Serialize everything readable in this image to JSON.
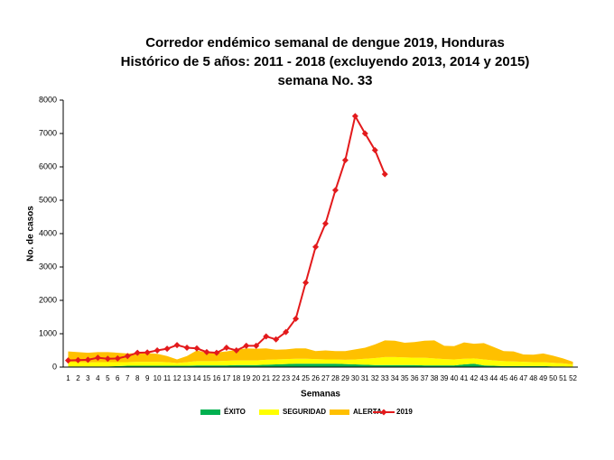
{
  "chart_data": {
    "type": "area",
    "title": [
      "Corredor endémico semanal de dengue 2019, Honduras",
      "Histórico de 5 años: 2011 - 2018 (excluyendo 2013, 2014 y 2015)",
      "semana No. 33"
    ],
    "x_label": "Semanas",
    "y_label": "No. de casos",
    "categories": [
      "1",
      "2",
      "3",
      "4",
      "5",
      "6",
      "7",
      "8",
      "9",
      "10",
      "11",
      "12",
      "13",
      "14",
      "15",
      "16",
      "17",
      "18",
      "19",
      "20",
      "21",
      "22",
      "23",
      "24",
      "25",
      "26",
      "27",
      "28",
      "29",
      "30",
      "31",
      "32",
      "33",
      "34",
      "35",
      "36",
      "37",
      "38",
      "39",
      "40",
      "41",
      "42",
      "43",
      "44",
      "45",
      "46",
      "47",
      "48",
      "49",
      "50",
      "51",
      "52"
    ],
    "ylim": [
      0,
      8000
    ],
    "yticks": [
      0,
      1000,
      2000,
      3000,
      4000,
      5000,
      6000,
      7000,
      8000
    ],
    "series": [
      {
        "name": "ÉXITO",
        "type": "area",
        "color": "#00b050",
        "values": [
          20,
          20,
          20,
          20,
          20,
          30,
          40,
          40,
          40,
          40,
          40,
          40,
          40,
          50,
          50,
          50,
          50,
          60,
          60,
          60,
          70,
          80,
          90,
          100,
          100,
          100,
          100,
          100,
          90,
          80,
          70,
          60,
          60,
          60,
          60,
          60,
          50,
          50,
          50,
          50,
          80,
          100,
          50,
          40,
          30,
          30,
          30,
          30,
          30,
          20,
          20,
          10
        ]
      },
      {
        "name": "SEGURIDAD",
        "type": "area",
        "color": "#ffff00",
        "values": [
          130,
          130,
          120,
          130,
          130,
          120,
          110,
          120,
          120,
          120,
          110,
          80,
          110,
          130,
          130,
          130,
          140,
          140,
          140,
          140,
          150,
          150,
          150,
          150,
          150,
          140,
          130,
          130,
          130,
          150,
          180,
          210,
          240,
          240,
          230,
          220,
          230,
          210,
          190,
          180,
          170,
          160,
          180,
          160,
          150,
          140,
          130,
          120,
          120,
          110,
          90,
          70
        ]
      },
      {
        "name": "ALERTA",
        "type": "area",
        "color": "#ffc000",
        "values": [
          320,
          300,
          290,
          300,
          300,
          280,
          260,
          260,
          260,
          240,
          180,
          110,
          180,
          320,
          250,
          260,
          280,
          320,
          360,
          350,
          340,
          290,
          290,
          310,
          310,
          240,
          270,
          250,
          260,
          300,
          330,
          410,
          500,
          490,
          440,
          470,
          510,
          540,
          400,
          400,
          490,
          440,
          490,
          400,
          300,
          300,
          220,
          220,
          260,
          210,
          150,
          80
        ]
      },
      {
        "name": "2019",
        "type": "line",
        "color": "#e31a1c",
        "values": [
          200,
          210,
          220,
          280,
          250,
          260,
          330,
          430,
          440,
          500,
          550,
          660,
          580,
          560,
          450,
          430,
          580,
          500,
          640,
          640,
          920,
          830,
          1050,
          1450,
          2530,
          3600,
          4300,
          5300,
          6200,
          7520,
          7000,
          6500,
          5780,
          null,
          null,
          null,
          null,
          null,
          null,
          null,
          null,
          null,
          null,
          null,
          null,
          null,
          null,
          null,
          null,
          null,
          null,
          null
        ]
      }
    ]
  }
}
